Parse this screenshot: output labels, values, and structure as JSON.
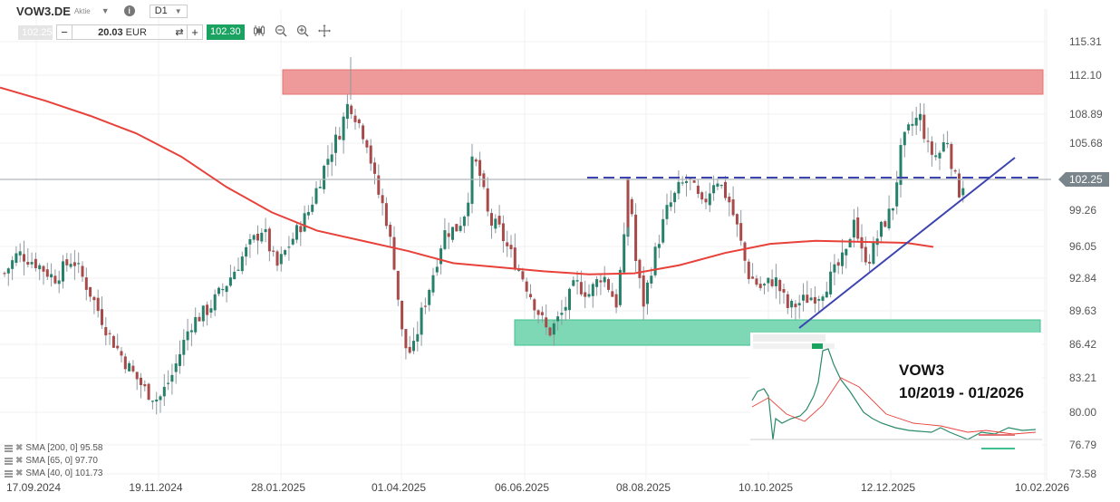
{
  "header": {
    "symbol": "VOW3.DE",
    "asset_type": "Aktie",
    "info_icon": "i",
    "timeframe": "D1",
    "bid": "102.25",
    "quantity_value": "20.03",
    "quantity_currency": "EUR",
    "ask": "102.30",
    "tools": [
      "candles-icon",
      "zoom-out-icon",
      "zoom-in-icon",
      "crosshair-icon"
    ]
  },
  "colors": {
    "bull": "#26806a",
    "bear": "#a94a4a",
    "wick": "#8f9aa0",
    "sma200": "#e8413a",
    "resistance_zone": "#ef9a9a",
    "support_zone": "#7fd8b5",
    "trendline": "#3c44b0",
    "price_line": "#b0b6ba",
    "price_tag": "#7a858b"
  },
  "legend": [
    {
      "label": "SMA [200, 0] 95.58"
    },
    {
      "label": "SMA [65, 0] 97.70"
    },
    {
      "label": "SMA [40, 0] 101.73"
    }
  ],
  "inset": {
    "title_line1": "VOW3",
    "title_line2": "10/2019 - 01/2026"
  },
  "chart_data": {
    "type": "candlestick",
    "title": "VOW3.DE Aktie D1",
    "current_price": 102.25,
    "y_ticks": [
      115.31,
      112.1,
      108.89,
      105.68,
      102.25,
      99.26,
      96.05,
      92.84,
      89.63,
      86.42,
      83.21,
      80.0,
      76.79,
      73.58
    ],
    "x_ticks": [
      "17.09.2024",
      "19.11.2024",
      "28.01.2025",
      "01.04.2025",
      "06.06.2025",
      "08.08.2025",
      "10.10.2025",
      "12.12.2025",
      "10.02.2026"
    ],
    "ylim": [
      73.58,
      115.31
    ],
    "grid": true,
    "annotations": [
      {
        "type": "zone",
        "label": "resistance",
        "from": 110.3,
        "to": 112.6,
        "x_start": "01.2025",
        "x_end": "02.2026"
      },
      {
        "type": "zone",
        "label": "support",
        "from": 86.4,
        "to": 88.9,
        "x_start": "05.2025",
        "x_end": "02.2026"
      },
      {
        "type": "hline_dashed",
        "value": 102.4,
        "x_start": "06.2025"
      },
      {
        "type": "trendline",
        "from": {
          "x": "10.2025",
          "y": 88.5
        },
        "to": {
          "x": "01.2026",
          "y": 104.5
        }
      }
    ],
    "sma200_series": {
      "name": "SMA 200",
      "points": [
        [
          0,
          111.3
        ],
        [
          50,
          110
        ],
        [
          100,
          108.5
        ],
        [
          150,
          106.8
        ],
        [
          200,
          104.5
        ],
        [
          250,
          101.5
        ],
        [
          300,
          99
        ],
        [
          350,
          97.2
        ],
        [
          400,
          96.2
        ],
        [
          450,
          95.2
        ],
        [
          500,
          94
        ],
        [
          550,
          93.6
        ],
        [
          600,
          93.2
        ],
        [
          650,
          92.9
        ],
        [
          700,
          93
        ],
        [
          750,
          93.8
        ],
        [
          800,
          95
        ],
        [
          850,
          95.9
        ],
        [
          900,
          96.2
        ],
        [
          950,
          96.1
        ],
        [
          1000,
          96
        ],
        [
          1030,
          95.6
        ]
      ]
    },
    "price_path": [
      [
        5,
        93
      ],
      [
        20,
        95
      ],
      [
        40,
        94
      ],
      [
        60,
        92.5
      ],
      [
        80,
        94.5
      ],
      [
        100,
        91
      ],
      [
        120,
        87
      ],
      [
        140,
        84
      ],
      [
        160,
        81.5
      ],
      [
        175,
        80.5
      ],
      [
        190,
        83
      ],
      [
        210,
        88
      ],
      [
        230,
        89.5
      ],
      [
        250,
        92
      ],
      [
        270,
        95
      ],
      [
        290,
        97.5
      ],
      [
        305,
        93.5
      ],
      [
        320,
        96
      ],
      [
        340,
        99
      ],
      [
        360,
        104
      ],
      [
        375,
        107
      ],
      [
        385,
        110
      ],
      [
        395,
        108
      ],
      [
        405,
        106
      ],
      [
        415,
        101.5
      ],
      [
        425,
        99
      ],
      [
        435,
        94
      ],
      [
        445,
        86
      ],
      [
        455,
        85
      ],
      [
        465,
        89
      ],
      [
        475,
        92
      ],
      [
        490,
        97
      ],
      [
        505,
        97.5
      ],
      [
        515,
        99.5
      ],
      [
        522,
        104.5
      ],
      [
        530,
        102.5
      ],
      [
        540,
        98
      ],
      [
        550,
        97.5
      ],
      [
        560,
        95.5
      ],
      [
        575,
        93
      ],
      [
        590,
        90
      ],
      [
        605,
        87
      ],
      [
        620,
        89
      ],
      [
        635,
        92
      ],
      [
        650,
        91
      ],
      [
        665,
        93
      ],
      [
        680,
        90
      ],
      [
        690,
        97
      ],
      [
        695,
        102.3
      ],
      [
        700,
        95
      ],
      [
        710,
        90
      ],
      [
        720,
        94
      ],
      [
        735,
        99
      ],
      [
        750,
        101.5
      ],
      [
        760,
        102.3
      ],
      [
        775,
        99.5
      ],
      [
        790,
        102.6
      ],
      [
        805,
        100
      ],
      [
        815,
        97
      ],
      [
        825,
        93
      ],
      [
        840,
        91.5
      ],
      [
        855,
        92.5
      ],
      [
        870,
        89.5
      ],
      [
        890,
        90.5
      ],
      [
        905,
        91
      ],
      [
        920,
        93
      ],
      [
        935,
        95
      ],
      [
        942,
        99
      ],
      [
        950,
        95
      ],
      [
        960,
        94.5
      ],
      [
        970,
        97
      ],
      [
        985,
        99.5
      ],
      [
        995,
        105.5
      ],
      [
        1005,
        107.5
      ],
      [
        1015,
        108.5
      ],
      [
        1025,
        105
      ],
      [
        1035,
        104.5
      ],
      [
        1045,
        106.5
      ],
      [
        1052,
        103
      ],
      [
        1058,
        101
      ],
      [
        1065,
        102.3
      ]
    ]
  }
}
